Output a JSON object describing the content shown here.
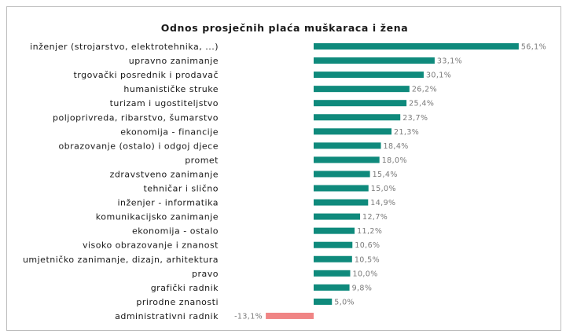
{
  "chart_data": {
    "type": "bar",
    "orientation": "horizontal",
    "title": "Odnos prosječnih plaća muškaraca i žena",
    "categories": [
      "inženjer (strojarstvo, elektrotehnika, ...)",
      "upravno zanimanje",
      "trgovački posrednik i prodavač",
      "humanističke struke",
      "turizam i ugostiteljstvo",
      "poljoprivreda, ribarstvo, šumarstvo",
      "ekonomija - financije",
      "obrazovanje (ostalo) i odgoj djece",
      "promet",
      "zdravstveno zanimanje",
      "tehničar i slično",
      "inženjer - informatika",
      "komunikacijsko zanimanje",
      "ekonomija - ostalo",
      "visoko obrazovanje i znanost",
      "umjetničko zanimanje, dizajn, arhitektura",
      "pravo",
      "grafički radnik",
      "prirodne znanosti",
      "administrativni radnik"
    ],
    "values": [
      56.1,
      33.1,
      30.1,
      26.2,
      25.4,
      23.7,
      21.3,
      18.4,
      18.0,
      15.4,
      15.0,
      14.9,
      12.7,
      11.2,
      10.6,
      10.5,
      10.0,
      9.8,
      5.0,
      -13.1
    ],
    "value_labels": [
      "56,1%",
      "33,1%",
      "30,1%",
      "26,2%",
      "25,4%",
      "23,7%",
      "21,3%",
      "18,4%",
      "18,0%",
      "15,4%",
      "15,0%",
      "14,9%",
      "12,7%",
      "11,2%",
      "10,6%",
      "10,5%",
      "10,0%",
      "9,8%",
      "5,0%",
      "-13,1%"
    ],
    "unit": "%",
    "colors": {
      "positive": "#0f8a7c",
      "negative": "#f08585"
    },
    "grid": false,
    "legend": "none"
  }
}
